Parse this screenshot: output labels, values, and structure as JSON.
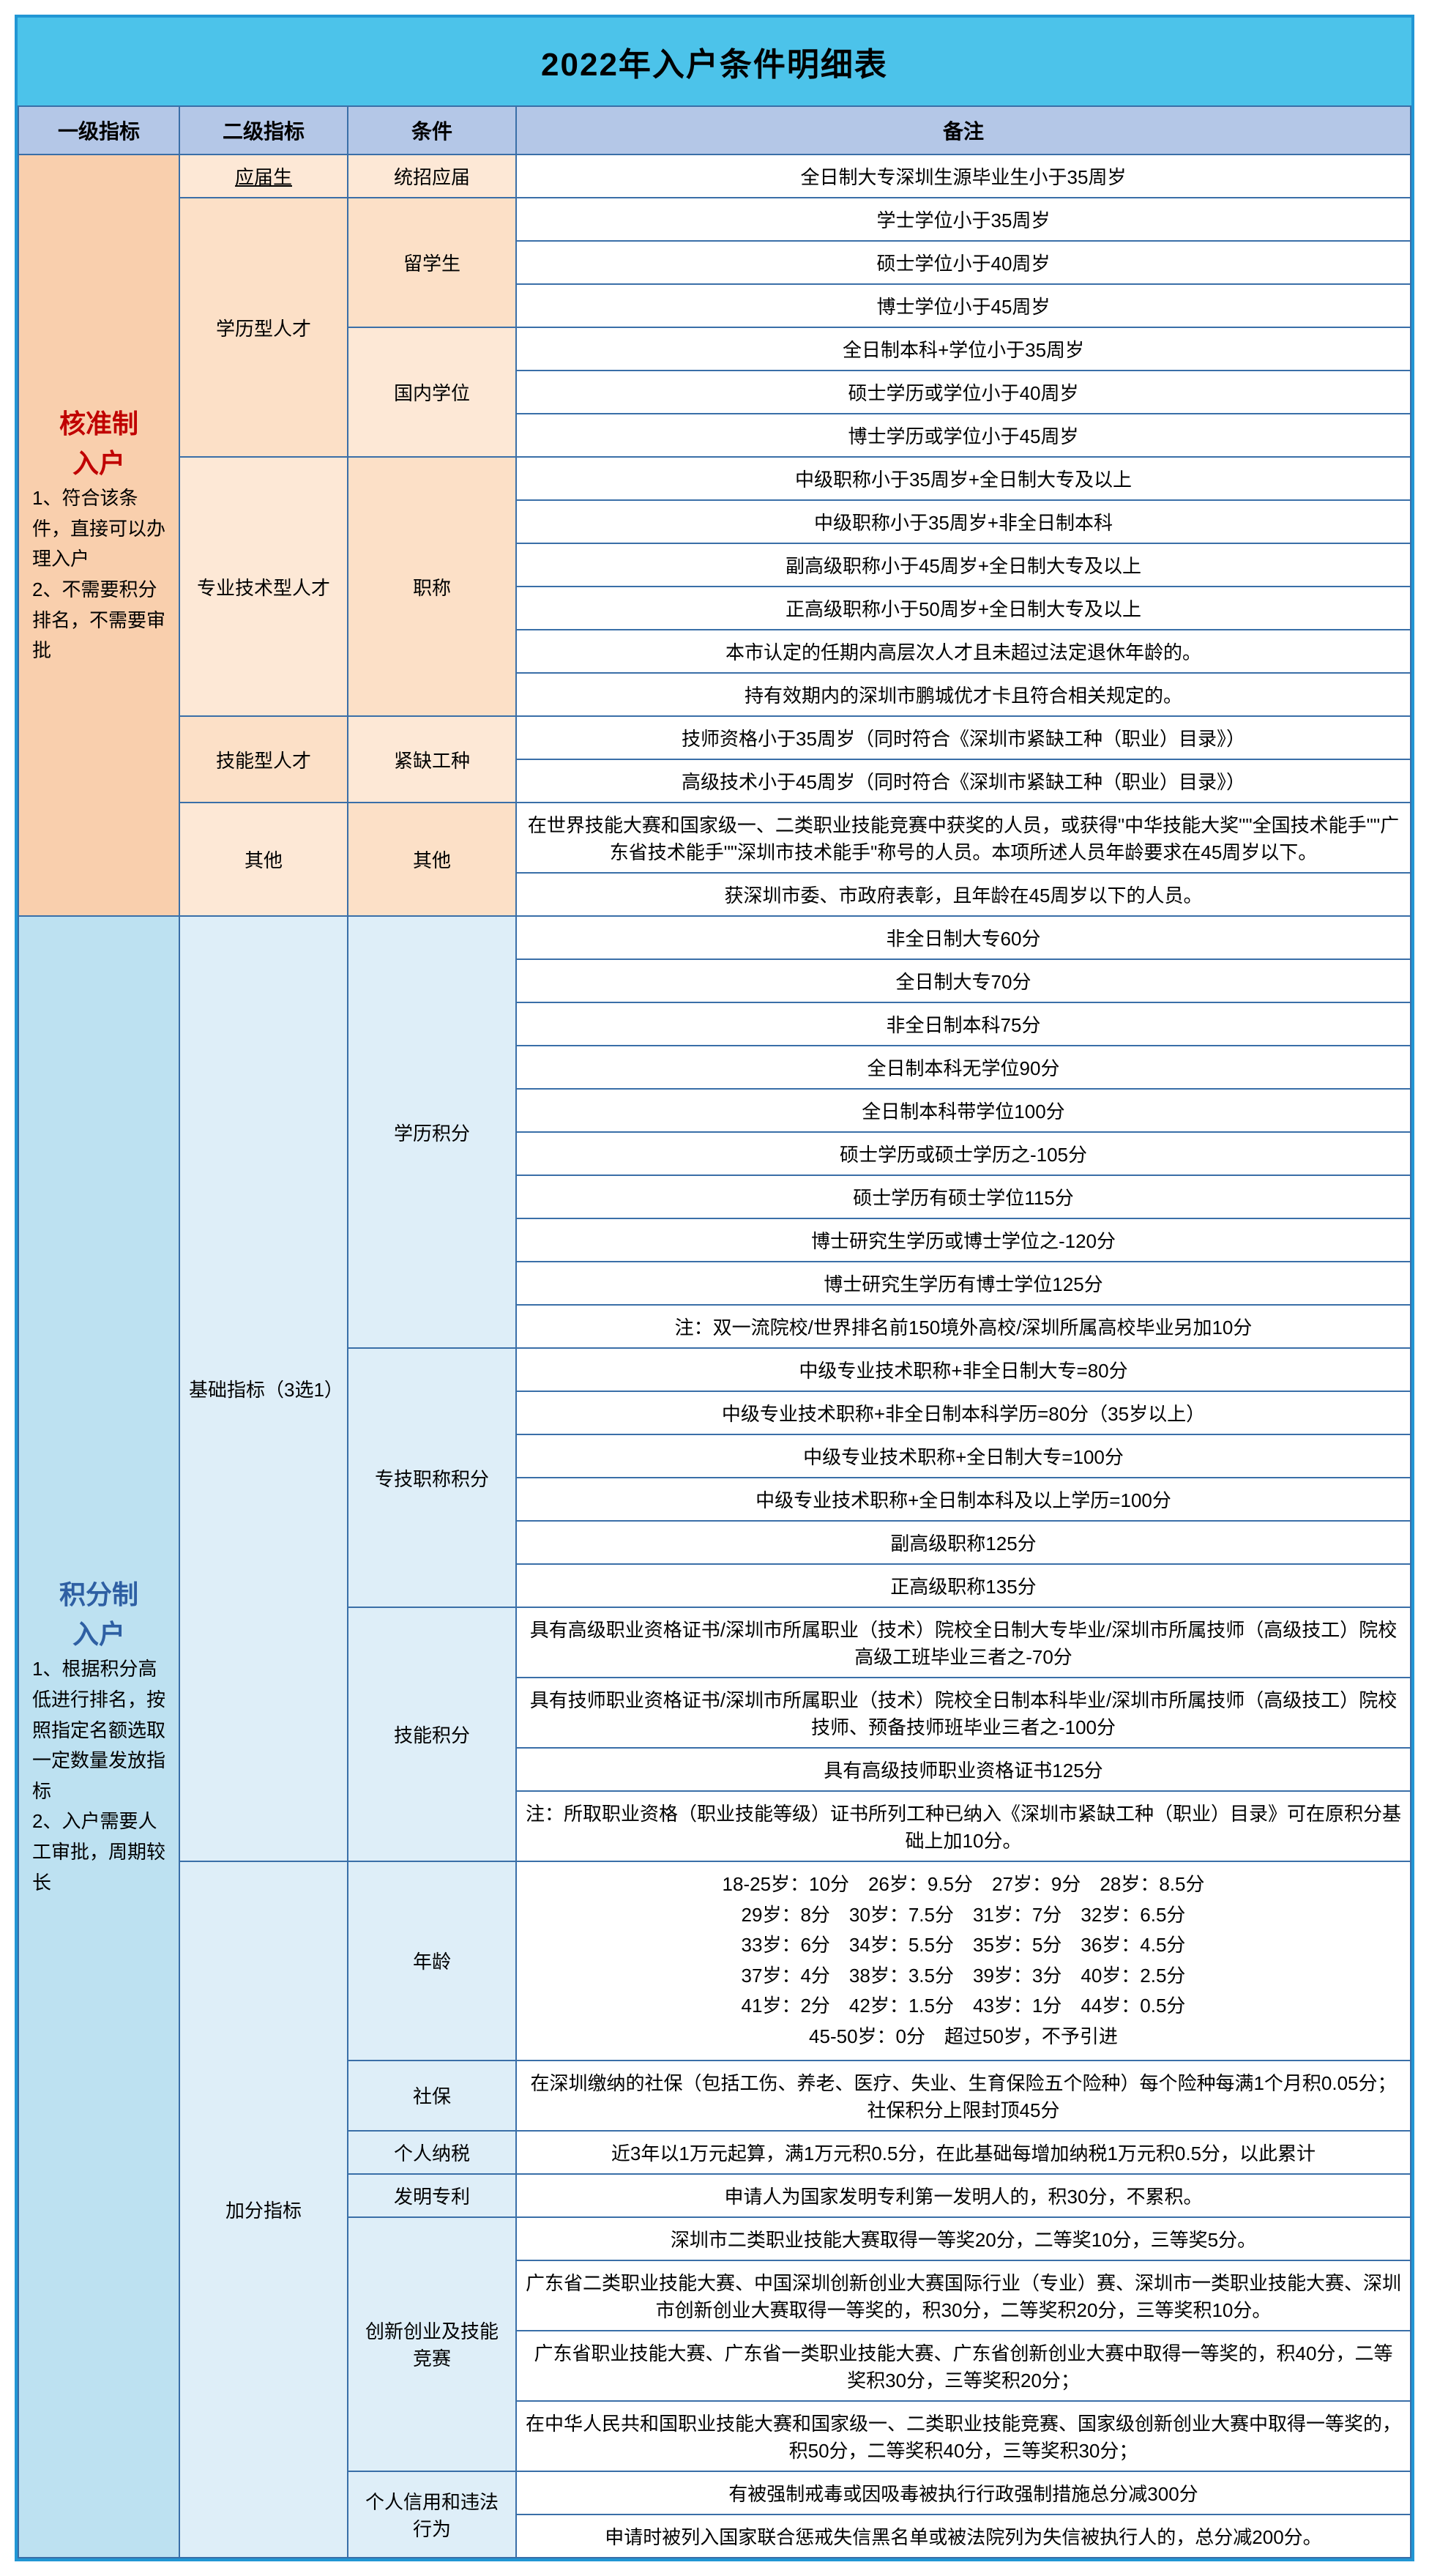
{
  "title": "2022年入户条件明细表",
  "headers": [
    "一级指标",
    "二级指标",
    "条件",
    "备注"
  ],
  "section1": {
    "title": "核准制入户",
    "desc": "1、符合该条件，直接可以办理入户\n2、不需要积分排名，不需要审批",
    "groups": [
      {
        "l2": "应届生",
        "l2class": "sub-orange-light underline",
        "l3": "统招应届",
        "l3class": "sub-orange-light",
        "remarks": [
          "全日制大专深圳生源毕业生小于35周岁"
        ]
      },
      {
        "l2": "学历型人才",
        "l2class": "sub-orange-mid",
        "subs": [
          {
            "l3": "留学生",
            "l3class": "sub-orange-mid",
            "remarks": [
              "学士学位小于35周岁",
              "硕士学位小于40周岁",
              "博士学位小于45周岁"
            ]
          },
          {
            "l3": "国内学位",
            "l3class": "sub-orange-light",
            "remarks": [
              "全日制本科+学位小于35周岁",
              "硕士学历或学位小于40周岁",
              "博士学历或学位小于45周岁"
            ]
          }
        ]
      },
      {
        "l2": "专业技术型人才",
        "l2class": "sub-orange-light",
        "l3": "职称",
        "l3class": "sub-orange-mid",
        "remarks": [
          "中级职称小于35周岁+全日制大专及以上",
          "中级职称小于35周岁+非全日制本科",
          "副高级职称小于45周岁+全日制大专及以上",
          "正高级职称小于50周岁+全日制大专及以上",
          "本市认定的任期内高层次人才且未超过法定退休年龄的。",
          "持有效期内的深圳市鹏城优才卡且符合相关规定的。"
        ]
      },
      {
        "l2": "技能型人才",
        "l2class": "sub-orange-mid",
        "l3": "紧缺工种",
        "l3class": "sub-orange-light",
        "remarks": [
          "技师资格小于35周岁（同时符合《深圳市紧缺工种（职业）目录》）",
          "高级技术小于45周岁（同时符合《深圳市紧缺工种（职业）目录》）"
        ]
      },
      {
        "l2": "其他",
        "l2class": "sub-orange-light",
        "l3": "其他",
        "l3class": "sub-orange-mid",
        "remarks": [
          "在世界技能大赛和国家级一、二类职业技能竞赛中获奖的人员，或获得\"中华技能大奖\"\"全国技术能手\"\"广东省技术能手\"\"深圳市技术能手\"称号的人员。本项所述人员年龄要求在45周岁以下。",
          "获深圳市委、市政府表彰，且年龄在45周岁以下的人员。"
        ]
      }
    ]
  },
  "section2": {
    "title": "积分制入户",
    "desc": "1、根据积分高低进行排名，按照指定名额选取一定数量发放指标\n2、入户需要人工审批，周期较长",
    "basic": {
      "l2": "基础指标（3选1）",
      "l2class": "sub-blue-light",
      "subs": [
        {
          "l3": "学历积分",
          "l3class": "sub-blue-light",
          "remarks": [
            "非全日制大专60分",
            "全日制大专70分",
            "非全日制本科75分",
            "全日制本科无学位90分",
            "全日制本科带学位100分",
            "硕士学历或硕士学历之-105分",
            "硕士学历有硕士学位115分",
            "博士研究生学历或博士学位之-120分",
            "博士研究生学历有博士学位125分",
            "注：双一流院校/世界排名前150境外高校/深圳所属高校毕业另加10分"
          ]
        },
        {
          "l3": "专技职称积分",
          "l3class": "sub-blue-light",
          "remarks": [
            "中级专业技术职称+非全日制大专=80分",
            "中级专业技术职称+非全日制本科学历=80分（35岁以上）",
            "中级专业技术职称+全日制大专=100分",
            "中级专业技术职称+全日制本科及以上学历=100分",
            "副高级职称125分",
            "正高级职称135分"
          ]
        },
        {
          "l3": "技能积分",
          "l3class": "sub-blue-light",
          "remarks": [
            "具有高级职业资格证书/深圳市所属职业（技术）院校全日制大专毕业/深圳市所属技师（高级技工）院校高级工班毕业三者之-70分",
            "具有技师职业资格证书/深圳市所属职业（技术）院校全日制本科毕业/深圳市所属技师（高级技工）院校技师、预备技师班毕业三者之-100分",
            "具有高级技师职业资格证书125分",
            "注：所取职业资格（职业技能等级）证书所列工种已纳入《深圳市紧缺工种（职业）目录》可在原积分基础上加10分。"
          ]
        }
      ]
    },
    "bonus": {
      "l2": "加分指标",
      "l2class": "sub-blue-light",
      "subs": [
        {
          "l3": "年龄",
          "l3class": "sub-blue-light",
          "remarks": [
            "18-25岁：10分　26岁：9.5分　27岁：9分　28岁：8.5分\n29岁：8分　30岁：7.5分　31岁：7分　32岁：6.5分\n33岁：6分　34岁：5.5分　35岁：5分　36岁：4.5分\n37岁：4分　38岁：3.5分　39岁：3分　40岁：2.5分\n41岁：2分　42岁：1.5分　43岁：1分　44岁：0.5分\n45-50岁：0分　超过50岁，不予引进"
          ]
        },
        {
          "l3": "社保",
          "l3class": "sub-blue-light",
          "remarks": [
            "在深圳缴纳的社保（包括工伤、养老、医疗、失业、生育保险五个险种）每个险种每满1个月积0.05分；社保积分上限封顶45分"
          ]
        },
        {
          "l3": "个人纳税",
          "l3class": "sub-blue-light",
          "remarks": [
            "近3年以1万元起算，满1万元积0.5分，在此基础每增加纳税1万元积0.5分，以此累计"
          ]
        },
        {
          "l3": "发明专利",
          "l3class": "sub-blue-light",
          "remarks": [
            "申请人为国家发明专利第一发明人的，积30分，不累积。"
          ]
        },
        {
          "l3": "创新创业及技能竞赛",
          "l3class": "sub-blue-light",
          "remarks": [
            "深圳市二类职业技能大赛取得一等奖20分，二等奖10分，三等奖5分。",
            "广东省二类职业技能大赛、中国深圳创新创业大赛国际行业（专业）赛、深圳市一类职业技能大赛、深圳市创新创业大赛取得一等奖的，积30分，二等奖积20分，三等奖积10分。",
            "广东省职业技能大赛、广东省一类职业技能大赛、广东省创新创业大赛中取得一等奖的，积40分，二等奖积30分，三等奖积20分；",
            "在中华人民共和国职业技能大赛和国家级一、二类职业技能竞赛、国家级创新创业大赛中取得一等奖的，积50分，二等奖积40分，三等奖积30分；"
          ]
        },
        {
          "l3": "个人信用和违法行为",
          "l3class": "sub-blue-light",
          "remarks": [
            "有被强制戒毒或因吸毒被执行行政强制措施总分减300分",
            "申请时被列入国家联合惩戒失信黑名单或被法院列为失信被执行人的，总分减200分。"
          ]
        }
      ]
    }
  }
}
